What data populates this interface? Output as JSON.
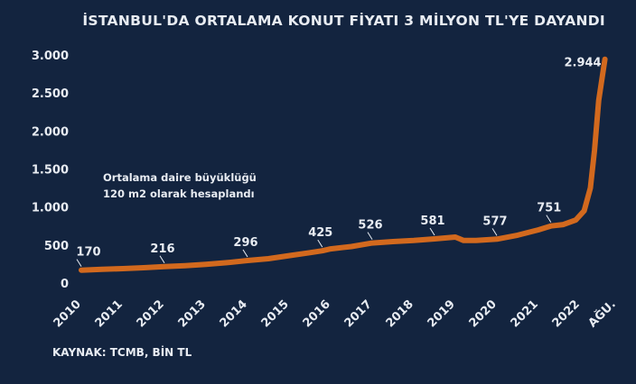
{
  "chart_data": {
    "type": "line",
    "title": "İSTANBUL'DA ORTALAMA KONUT FİYATI 3 MİLYON TL'YE DAYANDI",
    "source": "KAYNAK: TCMB, BİN TL",
    "annotation": [
      "Ortalama daire büyüklüğü",
      "120 m2 olarak hesaplandı"
    ],
    "ylim": [
      0,
      3000
    ],
    "y_ticks": [
      0,
      500,
      1000,
      1500,
      2000,
      2500,
      3000
    ],
    "y_tick_labels": [
      "0",
      "500",
      "1.000",
      "1.500",
      "2.000",
      "2.500",
      "3.000"
    ],
    "x_tick_labels": [
      "2010",
      "2011",
      "2012",
      "2013",
      "2014",
      "2015",
      "2016",
      "2017",
      "2018",
      "2019",
      "2020",
      "2021",
      "2022",
      "AĞU."
    ],
    "grid": false,
    "line_color": "#d2691e",
    "series": [
      {
        "x": [
          2010,
          2010.5,
          2011,
          2011.5,
          2012,
          2012.5,
          2013,
          2013.5,
          2014,
          2014.5,
          2015,
          2015.5,
          2015.8,
          2016,
          2016.5,
          2017,
          2017.5,
          2018,
          2018.5,
          2019,
          2019.2,
          2019.5,
          2020,
          2020.5,
          2021,
          2021.3,
          2021.6,
          2021.9,
          2022.1,
          2022.25,
          2022.35,
          2022.45,
          2022.6
        ],
        "values": [
          170,
          180,
          190,
          202,
          216,
          228,
          245,
          268,
          296,
          320,
          360,
          400,
          425,
          450,
          480,
          526,
          545,
          560,
          581,
          605,
          560,
          560,
          577,
          630,
          700,
          751,
          770,
          830,
          950,
          1250,
          1750,
          2400,
          2944
        ]
      }
    ],
    "data_labels": [
      {
        "x": 2010,
        "value": 170,
        "label": "170"
      },
      {
        "x": 2012,
        "value": 216,
        "label": "216"
      },
      {
        "x": 2014,
        "value": 296,
        "label": "296"
      },
      {
        "x": 2015.8,
        "value": 425,
        "label": "425"
      },
      {
        "x": 2017,
        "value": 526,
        "label": "526"
      },
      {
        "x": 2018.5,
        "value": 581,
        "label": "581"
      },
      {
        "x": 2020,
        "value": 577,
        "label": "577"
      },
      {
        "x": 2021.3,
        "value": 751,
        "label": "751"
      },
      {
        "x": 2022.6,
        "value": 2944,
        "label": "2.944"
      }
    ]
  }
}
